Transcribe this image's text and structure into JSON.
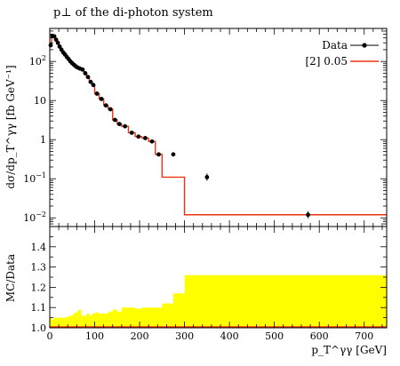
{
  "chart_data": [
    {
      "type": "line",
      "title": "p⊥ of the di-photon system",
      "ylabel": "dσ/dp_T^γγ [fb GeV⁻¹]",
      "yscale": "log",
      "xlim": [
        0,
        750
      ],
      "ylim": [
        0.006,
        700
      ],
      "y_tick_labels": [
        "10^2",
        "10",
        "1",
        "10^-1",
        "10^-2"
      ],
      "y_tick_values": [
        100,
        10,
        1,
        0.1,
        0.01
      ],
      "legend_position": "top-right",
      "legend": [
        "Data",
        "[2] 0.05"
      ],
      "colors": {
        "data": "#000000",
        "mc": "#ee3311"
      },
      "bin_edges": [
        0,
        4,
        8,
        12,
        16,
        20,
        24,
        28,
        32,
        36,
        40,
        44,
        48,
        52,
        56,
        60,
        64,
        70,
        76,
        82,
        88,
        94,
        100,
        110,
        120,
        130,
        140,
        150,
        160,
        175,
        190,
        205,
        220,
        235,
        250,
        275,
        300,
        400,
        750
      ],
      "series": [
        {
          "name": "Data",
          "x": [
            2,
            6,
            10,
            14,
            18,
            22,
            26,
            30,
            34,
            38,
            42,
            46,
            50,
            54,
            58,
            62,
            67,
            73,
            79,
            85,
            91,
            97,
            105,
            115,
            125,
            135,
            145,
            155,
            167.5,
            182.5,
            197.5,
            212.5,
            227.5,
            242.5,
            275,
            350,
            575
          ],
          "y": [
            260,
            450,
            440,
            360,
            300,
            240,
            200,
            170,
            150,
            130,
            115,
            100,
            90,
            82,
            75,
            70,
            66,
            62,
            50,
            40,
            30,
            25,
            15,
            11,
            7.5,
            6,
            3.2,
            2.5,
            2.2,
            1.5,
            1.2,
            1.1,
            0.9,
            0.42,
            0.42,
            0.11,
            0.012
          ]
        },
        {
          "name": "[2] 0.05",
          "values": [
            270,
            450,
            450,
            370,
            300,
            250,
            200,
            175,
            150,
            130,
            115,
            100,
            90,
            82,
            75,
            70,
            66,
            62,
            50,
            40,
            30,
            25,
            15,
            11,
            7.5,
            6,
            3.2,
            2.5,
            2.2,
            1.5,
            1.2,
            1.1,
            0.9,
            0.42,
            0.11,
            0.11,
            0.012,
            0.012
          ]
        }
      ]
    },
    {
      "type": "area",
      "ylabel": "MC/Data",
      "xlabel": "p_T^γγ [GeV]",
      "xlim": [
        0,
        750
      ],
      "ylim": [
        1.0,
        1.5
      ],
      "x_tick_labels": [
        "0",
        "100",
        "200",
        "300",
        "400",
        "500",
        "600",
        "700"
      ],
      "x_tick_values": [
        0,
        100,
        200,
        300,
        400,
        500,
        600,
        700
      ],
      "y_tick_labels": [
        "1.0",
        "1.1",
        "1.2",
        "1.3",
        "1.4"
      ],
      "y_tick_values": [
        1.0,
        1.1,
        1.2,
        1.3,
        1.4
      ],
      "colors": {
        "band": "#ffff00",
        "ratio": "#ee3311"
      },
      "bin_edges": [
        0,
        4,
        8,
        12,
        16,
        20,
        24,
        28,
        32,
        36,
        40,
        44,
        48,
        52,
        56,
        60,
        64,
        70,
        76,
        82,
        88,
        94,
        100,
        110,
        120,
        130,
        140,
        150,
        160,
        175,
        190,
        205,
        220,
        235,
        250,
        275,
        300,
        400,
        750
      ],
      "series": [
        {
          "name": "",
          "values": [
            1.05,
            1.04,
            1.05,
            1.05,
            1.05,
            1.05,
            1.05,
            1.05,
            1.05,
            1.055,
            1.055,
            1.06,
            1.06,
            1.07,
            1.075,
            1.08,
            1.09,
            1.06,
            1.06,
            1.07,
            1.06,
            1.07,
            1.075,
            1.07,
            1.07,
            1.08,
            1.09,
            1.08,
            1.1,
            1.1,
            1.095,
            1.1,
            1.1,
            1.1,
            1.12,
            1.17,
            1.26,
            1.26
          ]
        }
      ]
    }
  ]
}
